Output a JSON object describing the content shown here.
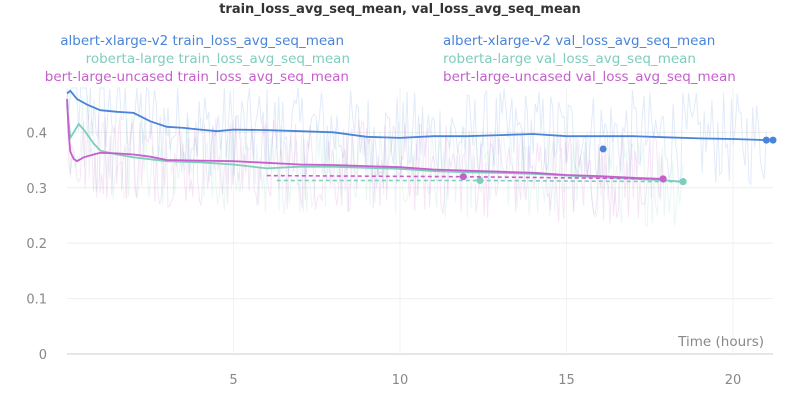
{
  "chart_data": {
    "type": "line",
    "title": "train_loss_avg_seq_mean, val_loss_avg_seq_mean",
    "xlabel": "Time (hours)",
    "ylabel": "",
    "xlim": [
      0,
      21.2
    ],
    "ylim": [
      0,
      0.48
    ],
    "x_ticks": [
      5,
      10,
      15,
      20
    ],
    "y_ticks": [
      0,
      0.1,
      0.2,
      0.3,
      0.4
    ],
    "x_tick_labels": [
      "5",
      "10",
      "15",
      "20"
    ],
    "y_tick_labels": [
      "0",
      "0.1",
      "0.2",
      "0.3",
      "0.4"
    ],
    "grid": true,
    "legend_position": "top",
    "legend": [
      "albert-xlarge-v2 train_loss_avg_seq_mean",
      "albert-xlarge-v2 val_loss_avg_seq_mean",
      "roberta-large train_loss_avg_seq_mean",
      "roberta-large val_loss_avg_seq_mean",
      "bert-large-uncased train_loss_avg_seq_mean",
      "bert-large-uncased val_loss_avg_seq_mean"
    ],
    "series": [
      {
        "name": "albert-xlarge-v2 train_loss_avg_seq_mean",
        "color": "#4a84d8",
        "style": "solid",
        "x": [
          0,
          0.1,
          0.3,
          0.6,
          1.0,
          1.5,
          2.0,
          2.5,
          3.0,
          3.5,
          4.0,
          4.5,
          5.0,
          6.0,
          7.0,
          8.0,
          9.0,
          10.0,
          11.0,
          12.0,
          13.0,
          14.0,
          15.0,
          16.0,
          17.0,
          18.0,
          19.0,
          20.0,
          21.0
        ],
        "y": [
          0.47,
          0.475,
          0.46,
          0.45,
          0.44,
          0.437,
          0.435,
          0.42,
          0.41,
          0.408,
          0.405,
          0.402,
          0.405,
          0.404,
          0.402,
          0.4,
          0.392,
          0.39,
          0.393,
          0.393,
          0.395,
          0.397,
          0.393,
          0.393,
          0.393,
          0.391,
          0.389,
          0.388,
          0.386
        ]
      },
      {
        "name": "albert-xlarge-v2 val_loss_avg_seq_mean",
        "color": "#4a84d8",
        "style": "points",
        "x": [
          16.1,
          21.2
        ],
        "y": [
          0.37,
          0.386
        ]
      },
      {
        "name": "roberta-large train_loss_avg_seq_mean",
        "color": "#7fcdbb",
        "style": "solid",
        "x": [
          0,
          0.1,
          0.2,
          0.35,
          0.5,
          0.8,
          1.0,
          1.5,
          2.0,
          3.0,
          4.0,
          5.0,
          6.0,
          7.0,
          8.0,
          9.0,
          10.0,
          11.0,
          12.0,
          13.0,
          14.0,
          15.0,
          16.0,
          17.0,
          18.0,
          18.5
        ],
        "y": [
          0.45,
          0.39,
          0.4,
          0.415,
          0.405,
          0.38,
          0.367,
          0.36,
          0.355,
          0.348,
          0.346,
          0.342,
          0.335,
          0.338,
          0.338,
          0.336,
          0.334,
          0.33,
          0.328,
          0.327,
          0.325,
          0.322,
          0.319,
          0.316,
          0.313,
          0.311
        ]
      },
      {
        "name": "roberta-large val_loss_avg_seq_mean",
        "color": "#7fcdbb",
        "style": "dashed",
        "x": [
          6.3,
          12.4,
          18.5
        ],
        "y": [
          0.313,
          0.313,
          0.311
        ]
      },
      {
        "name": "bert-large-uncased train_loss_avg_seq_mean",
        "color": "#c65fcc",
        "style": "solid",
        "x": [
          0,
          0.05,
          0.1,
          0.2,
          0.3,
          0.5,
          0.8,
          1.0,
          1.5,
          2.0,
          2.5,
          3.0,
          4.0,
          5.0,
          6.0,
          7.0,
          8.0,
          9.0,
          10.0,
          11.0,
          12.0,
          13.0,
          14.0,
          15.0,
          16.0,
          17.0,
          17.9
        ],
        "y": [
          0.46,
          0.4,
          0.365,
          0.352,
          0.348,
          0.355,
          0.36,
          0.363,
          0.362,
          0.36,
          0.356,
          0.35,
          0.349,
          0.348,
          0.345,
          0.342,
          0.341,
          0.339,
          0.337,
          0.333,
          0.331,
          0.329,
          0.327,
          0.323,
          0.321,
          0.318,
          0.316
        ]
      },
      {
        "name": "bert-large-uncased val_loss_avg_seq_mean",
        "color": "#c65fcc",
        "style": "dashed",
        "x": [
          6.0,
          11.9,
          17.9
        ],
        "y": [
          0.322,
          0.32,
          0.316
        ]
      }
    ]
  }
}
